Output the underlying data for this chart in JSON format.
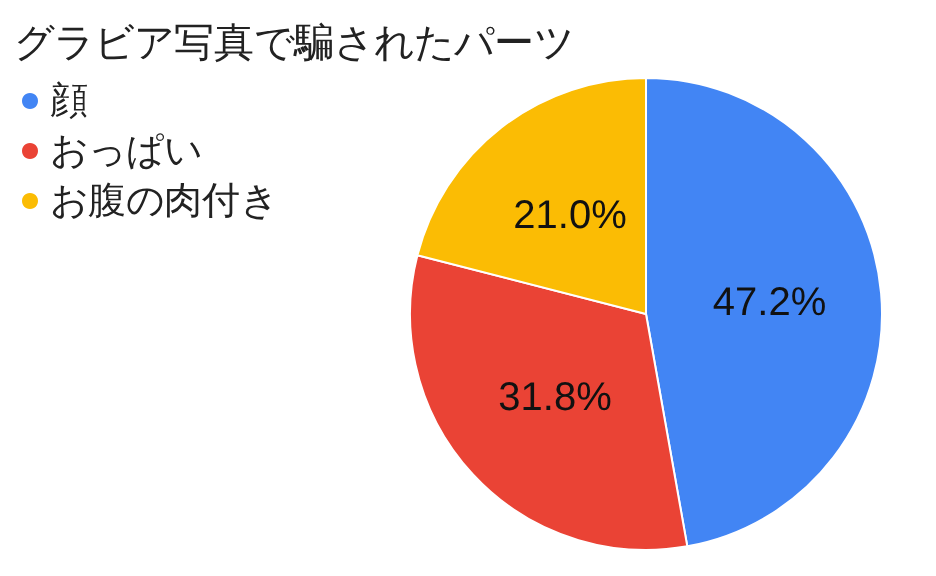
{
  "chart_data": {
    "type": "pie",
    "title": "グラビア写真で騙されたパーツ",
    "categories": [
      "顔",
      "おっぱい",
      "お腹の肉付き"
    ],
    "values": [
      47.2,
      31.8,
      21.0
    ],
    "colors": [
      "#4285f4",
      "#ea4335",
      "#fbbc04"
    ],
    "value_labels": [
      "47.2%",
      "31.8%",
      "21.0%"
    ],
    "legend": "top left"
  }
}
